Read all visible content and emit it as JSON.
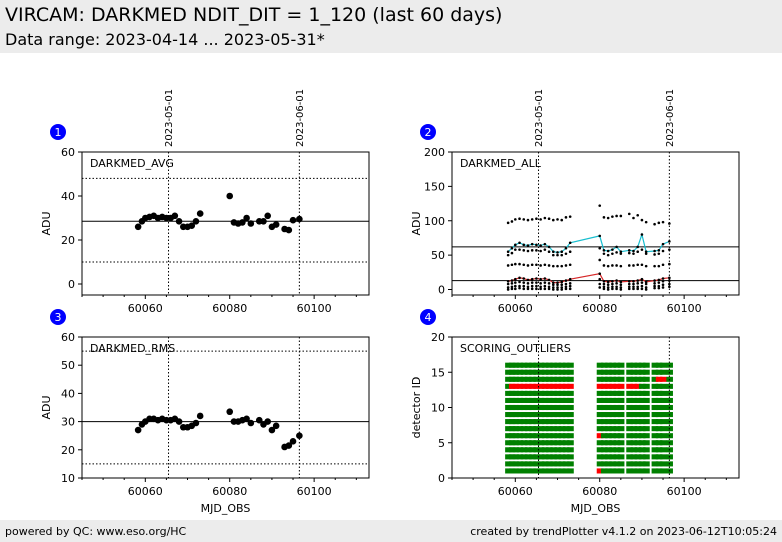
{
  "header": {
    "title": "VIRCAM: DARKMED NDIT_DIT = 1_120 (last 60 days)",
    "subtitle": "Data range: 2023-04-14 ... 2023-05-31*"
  },
  "footer": {
    "left": "powered by QC: www.eso.org/HC",
    "right": "created by trendPlotter v4.1.2 on 2023-06-12T10:05:24"
  },
  "colors": {
    "badge": "#0000ff",
    "points": "#000000",
    "cyan": "#17becf",
    "red": "#d62728",
    "green": "#008000",
    "outlier": "#ff0000"
  },
  "chart_data": [
    {
      "id": "1",
      "type": "scatter",
      "label": "DARKMED_AVG",
      "xlabel": "",
      "ylabel": "ADU",
      "xlim": [
        60045,
        60113
      ],
      "ylim": [
        -5,
        60
      ],
      "yticks": [
        0,
        20,
        40,
        60
      ],
      "xticks": [
        60060,
        60080,
        60100
      ],
      "xticklabels_shown": true,
      "date_markers": [
        {
          "x": 60065.5,
          "label": "2023-05-01"
        },
        {
          "x": 60096.5,
          "label": "2023-06-01"
        }
      ],
      "ref_lines": [
        {
          "y": 28.5,
          "style": "solid"
        },
        {
          "y": 48,
          "style": "dotted"
        },
        {
          "y": 10,
          "style": "dotted"
        }
      ],
      "x": [
        60058.3,
        60059.2,
        60060,
        60061,
        60062,
        60063,
        60064,
        60065,
        60066,
        60067,
        60068,
        60069,
        60070,
        60071,
        60072,
        60073,
        60080,
        60081,
        60082,
        60083,
        60084,
        60085,
        60087,
        60088,
        60089,
        60090,
        60091,
        60093,
        60094,
        60095,
        60096.5
      ],
      "y": [
        26,
        28.5,
        30,
        30.5,
        31,
        30,
        30.5,
        30,
        30,
        31,
        28.5,
        26,
        26,
        26.5,
        28.5,
        32,
        40,
        28,
        27.5,
        28,
        30,
        27.5,
        28.5,
        28.5,
        31,
        26,
        27,
        25,
        24.5,
        29,
        29.5
      ]
    },
    {
      "id": "2",
      "type": "scatter",
      "label": "DARKMED_ALL",
      "xlabel": "",
      "ylabel": "ADU",
      "xlim": [
        60045,
        60113
      ],
      "ylim": [
        -8,
        200
      ],
      "yticks": [
        0,
        50,
        100,
        150,
        200
      ],
      "xticks": [
        60060,
        60080,
        60100
      ],
      "xticklabels_shown": true,
      "date_markers": [
        {
          "x": 60065.5,
          "label": "2023-05-01"
        },
        {
          "x": 60096.5,
          "label": "2023-06-01"
        }
      ],
      "ref_lines": [
        {
          "y": 62,
          "style": "solid"
        },
        {
          "y": 13,
          "style": "solid"
        }
      ],
      "x": [
        60058.3,
        60059.2,
        60060,
        60061,
        60062,
        60063,
        60064,
        60065,
        60066,
        60067,
        60068,
        60069,
        60070,
        60071,
        60072,
        60073,
        60080,
        60081,
        60082,
        60083,
        60084,
        60085,
        60087,
        60088,
        60089,
        60090,
        60091,
        60093,
        60094,
        60095,
        60096.5
      ],
      "series": [
        {
          "style": "black-dots",
          "values": [
            97,
            99,
            102,
            103,
            102,
            101,
            102,
            103,
            102,
            104,
            103,
            101,
            102,
            101,
            105,
            106,
            122,
            105,
            104,
            106,
            107,
            107,
            110,
            104,
            108,
            101,
            98,
            95,
            97,
            98,
            96
          ]
        },
        {
          "style": "cyan-line",
          "values": [
            55,
            60,
            65,
            68,
            65,
            64,
            66,
            65,
            64,
            66,
            62,
            55,
            54,
            55,
            60,
            68,
            78,
            57,
            56,
            58,
            62,
            55,
            57,
            56,
            62,
            80,
            55,
            56,
            57,
            66,
            70
          ]
        },
        {
          "style": "black-dots",
          "values": [
            50,
            53,
            58,
            58,
            57,
            56,
            57,
            57,
            56,
            58,
            55,
            50,
            50,
            50,
            52,
            55,
            60,
            52,
            50,
            52,
            54,
            52,
            53,
            52,
            55,
            58,
            52,
            51,
            52,
            56,
            58
          ]
        },
        {
          "style": "black-dots",
          "values": [
            35,
            36,
            37,
            37,
            36,
            35,
            36,
            36,
            35,
            36,
            35,
            34,
            34,
            34,
            35,
            36,
            43,
            35,
            34,
            35,
            35,
            34,
            35,
            35,
            36,
            36,
            34,
            34,
            34,
            36,
            37
          ]
        },
        {
          "style": "red-line",
          "values": [
            12,
            13,
            15,
            17,
            16,
            14,
            15,
            16,
            15,
            16,
            14,
            10,
            10,
            11,
            13,
            15,
            23,
            12,
            11,
            12,
            13,
            11,
            12,
            12,
            13,
            15,
            11,
            13,
            14,
            16,
            17
          ]
        },
        {
          "style": "black-dots",
          "values": [
            8,
            9,
            10,
            11,
            10,
            9,
            10,
            10,
            9,
            10,
            9,
            7,
            7,
            7,
            8,
            9,
            15,
            8,
            7,
            8,
            9,
            7,
            8,
            8,
            9,
            10,
            8,
            9,
            10,
            12,
            13
          ]
        },
        {
          "style": "black-dots",
          "values": [
            3,
            4,
            5,
            5,
            5,
            4,
            5,
            5,
            4,
            5,
            4,
            3,
            3,
            3,
            4,
            5,
            8,
            4,
            3,
            4,
            4,
            3,
            4,
            4,
            4,
            5,
            3,
            5,
            5,
            7,
            8
          ]
        },
        {
          "style": "black-dots",
          "values": [
            0,
            1,
            1,
            2,
            1,
            1,
            1,
            1,
            1,
            1,
            1,
            0,
            0,
            0,
            1,
            1,
            3,
            1,
            0,
            1,
            1,
            0,
            1,
            1,
            1,
            1,
            0,
            2,
            2,
            3,
            4
          ]
        }
      ]
    },
    {
      "id": "3",
      "type": "scatter",
      "label": "DARKMED_RMS",
      "xlabel": "MJD_OBS",
      "ylabel": "ADU",
      "xlim": [
        60045,
        60113
      ],
      "ylim": [
        10,
        60
      ],
      "yticks": [
        10,
        20,
        30,
        40,
        50,
        60
      ],
      "xticks": [
        60060,
        60080,
        60100
      ],
      "xticklabels_shown": true,
      "date_markers": [
        {
          "x": 60065.5,
          "label": ""
        },
        {
          "x": 60096.5,
          "label": ""
        }
      ],
      "ref_lines": [
        {
          "y": 30,
          "style": "solid"
        },
        {
          "y": 55,
          "style": "dotted"
        },
        {
          "y": 15,
          "style": "dotted"
        }
      ],
      "x": [
        60058.3,
        60059.2,
        60060,
        60061,
        60062,
        60063,
        60064,
        60065,
        60066,
        60067,
        60068,
        60069,
        60070,
        60071,
        60072,
        60073,
        60080,
        60081,
        60082,
        60083,
        60084,
        60085,
        60087,
        60088,
        60089,
        60090,
        60091,
        60093,
        60094,
        60095,
        60096.5
      ],
      "y": [
        27,
        29,
        30,
        31,
        31,
        30.5,
        31,
        30.5,
        30.5,
        31,
        30,
        28,
        28,
        28.5,
        29.5,
        32,
        33.5,
        30,
        30,
        30.5,
        31,
        29.5,
        30.5,
        29,
        30,
        27,
        28.5,
        21,
        21.5,
        23,
        25
      ]
    },
    {
      "id": "4",
      "type": "heatmap",
      "label": "SCORING_OUTLIERS",
      "xlabel": "MJD_OBS",
      "ylabel": "detector ID",
      "xlim": [
        60045,
        60113
      ],
      "ylim": [
        0,
        20
      ],
      "yticks": [
        0,
        5,
        10,
        15,
        20
      ],
      "xticks": [
        60060,
        60080,
        60100
      ],
      "xticklabels_shown": true,
      "date_markers": [
        {
          "x": 60065.5,
          "label": ""
        },
        {
          "x": 60096.5,
          "label": ""
        }
      ],
      "detectors": 16,
      "ok_color": "green",
      "outlier_color": "red",
      "x": [
        60058.3,
        60059.2,
        60060,
        60061,
        60062,
        60063,
        60064,
        60065,
        60066,
        60067,
        60068,
        60069,
        60070,
        60071,
        60072,
        60073,
        60080,
        60081,
        60082,
        60083,
        60084,
        60085,
        60087,
        60088,
        60089,
        60090,
        60091,
        60093,
        60094,
        60095,
        60096.5
      ],
      "outliers": [
        {
          "detector": 13,
          "x": [
            60059.2,
            60060,
            60061,
            60062,
            60063,
            60064,
            60065,
            60066,
            60067,
            60068,
            60069,
            60070,
            60071,
            60072,
            60073,
            60080,
            60081,
            60082,
            60083,
            60084,
            60085,
            60087,
            60088,
            60089
          ]
        },
        {
          "detector": 14,
          "x": [
            60094,
            60095
          ]
        },
        {
          "detector": 6,
          "x": [
            60080
          ]
        },
        {
          "detector": 1,
          "x": [
            60080
          ]
        }
      ]
    }
  ]
}
